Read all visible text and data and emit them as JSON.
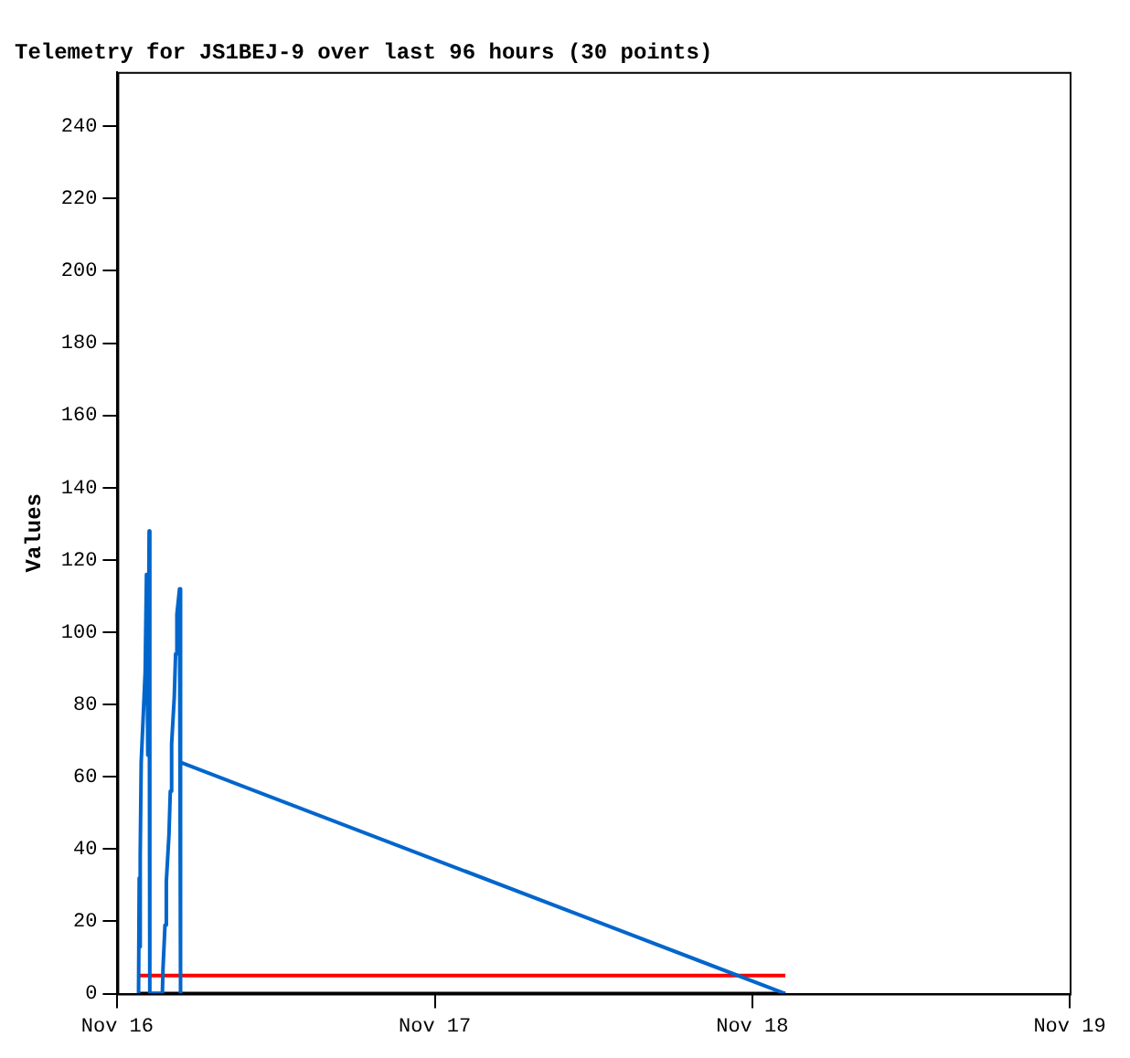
{
  "chart_data": {
    "type": "line",
    "title": "Telemetry for JS1BEJ-9 over last 96 hours (30 points)",
    "ylabel": "Values",
    "xlim": [
      "--11-16",
      "--11-19"
    ],
    "xticks": [
      {
        "value": "--11-16",
        "label": "Nov 16"
      },
      {
        "value": "--11-17",
        "label": "Nov 17"
      },
      {
        "value": "--11-18",
        "label": "Nov 18"
      },
      {
        "value": "--11-19",
        "label": "Nov 19"
      }
    ],
    "ylim": [
      0,
      255
    ],
    "yticks": [
      0,
      20,
      40,
      60,
      80,
      100,
      120,
      140,
      160,
      180,
      200,
      220,
      240
    ],
    "grid": false,
    "legend": false,
    "marker": "none",
    "line_style": "solid",
    "series": [
      {
        "color": "#0066cc",
        "x": [
          "--11-16T01:36",
          "--11-16T01:39",
          "--11-16T01:42",
          "--11-16T01:45",
          "--11-16T01:48",
          "--11-16T02:06",
          "--11-16T02:12",
          "--11-16T02:18",
          "--11-16T02:24",
          "--11-16T02:27",
          "--11-16T03:24",
          "--11-16T03:27",
          "--11-16T03:36",
          "--11-16T03:42",
          "--11-16T03:54",
          "--11-16T04:00",
          "--11-16T04:06",
          "--11-16T04:18",
          "--11-16T04:24",
          "--11-16T04:30",
          "--11-16T04:42",
          "--11-16T04:45",
          "--11-16T04:48",
          "--11-18T02:30"
        ],
        "values": [
          0,
          32,
          13,
          38,
          64,
          89,
          116,
          66,
          128,
          0,
          0,
          7,
          19,
          31,
          44,
          56,
          69,
          82,
          94,
          105,
          112,
          0,
          64,
          0
        ]
      },
      {
        "color": "#ff0000",
        "x": [
          "--11-16T01:36",
          "--11-18T02:30"
        ],
        "values": [
          5,
          5
        ]
      },
      {
        "color": "#000000",
        "x": [
          "--11-16T01:36",
          "--11-18T02:30"
        ],
        "values": [
          0,
          0
        ]
      }
    ]
  }
}
